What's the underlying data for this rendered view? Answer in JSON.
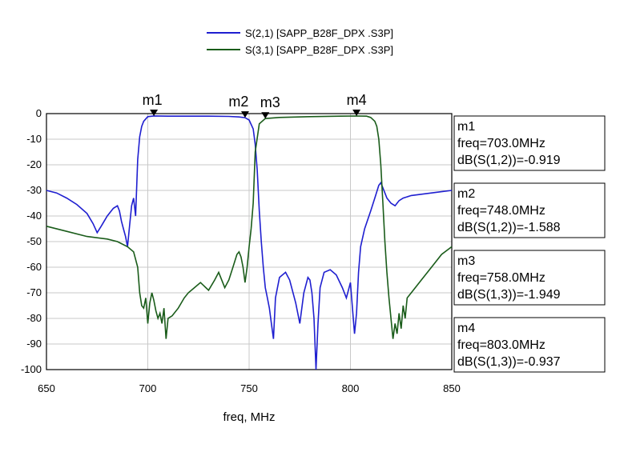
{
  "chart_data": {
    "type": "line",
    "xlabel": "freq, MHz",
    "ylabel": "",
    "xlim": [
      650,
      850
    ],
    "ylim": [
      -100,
      0
    ],
    "x_ticks": [
      "650",
      "700",
      "750",
      "800",
      "850"
    ],
    "y_ticks": [
      "0",
      "-10",
      "-20",
      "-30",
      "-40",
      "-50",
      "-60",
      "-70",
      "-80",
      "-90",
      "-100"
    ],
    "grid": true,
    "legend_position": "top-center",
    "series": [
      {
        "name": "S(2,1) [SAPP_B28F_DPX .S3P]",
        "color": "#1f1fd0",
        "x": [
          650,
          655,
          660,
          665,
          670,
          673,
          675,
          677,
          680,
          683,
          685,
          686,
          687,
          688,
          689,
          690,
          691,
          692,
          693,
          694,
          695,
          696,
          697,
          698,
          700,
          703,
          710,
          720,
          730,
          740,
          745,
          748,
          750,
          752,
          753,
          754,
          755,
          756,
          757,
          758,
          759,
          760,
          761,
          762,
          763,
          765,
          768,
          770,
          773,
          775,
          777,
          779,
          780,
          781,
          782,
          783,
          784,
          785,
          787,
          790,
          793,
          796,
          798,
          800,
          801,
          802,
          803,
          804,
          805,
          807,
          810,
          812,
          814,
          815,
          816,
          818,
          820,
          822,
          824,
          826,
          830,
          835,
          840,
          845,
          850
        ],
        "y": [
          -30,
          -31,
          -33,
          -35.5,
          -39,
          -43,
          -46.5,
          -44,
          -40,
          -37,
          -36,
          -38,
          -42,
          -45,
          -48,
          -52,
          -44,
          -36,
          -33,
          -40,
          -18,
          -9,
          -5,
          -3,
          -1.2,
          -0.919,
          -1.0,
          -1.0,
          -1.0,
          -1.1,
          -1.3,
          -1.588,
          -2.5,
          -6,
          -12,
          -22,
          -38,
          -50,
          -60,
          -68,
          -72,
          -76,
          -82,
          -88,
          -72,
          -64,
          -62,
          -65,
          -74,
          -82,
          -70,
          -64,
          -65,
          -70,
          -80,
          -100,
          -82,
          -68,
          -62,
          -61,
          -63,
          -68,
          -72,
          -66,
          -76,
          -86,
          -78,
          -62,
          -52,
          -45,
          -38,
          -33,
          -28,
          -27,
          -29,
          -33,
          -35,
          -36,
          -34,
          -33,
          -32,
          -31.5,
          -31,
          -30.5,
          -30
        ]
      },
      {
        "name": "S(3,1) [SAPP_B28F_DPX .S3P]",
        "color": "#1a5c1a",
        "x": [
          650,
          660,
          670,
          680,
          685,
          690,
          693,
          695,
          696,
          697,
          698,
          699,
          700,
          701,
          702,
          703,
          704,
          705,
          706,
          707,
          708,
          709,
          710,
          712,
          715,
          718,
          720,
          723,
          726,
          730,
          733,
          735,
          738,
          740,
          742,
          744,
          745,
          746,
          747,
          748,
          749,
          750,
          751,
          752,
          753,
          755,
          758,
          765,
          780,
          795,
          803,
          808,
          810,
          812,
          813,
          814,
          815,
          816,
          817,
          818,
          819,
          820,
          821,
          822,
          823,
          824,
          825,
          826,
          827,
          828,
          830,
          835,
          840,
          845,
          850
        ],
        "y": [
          -44,
          -46,
          -48,
          -49,
          -50,
          -52,
          -54,
          -60,
          -70,
          -75,
          -76,
          -72,
          -82,
          -74,
          -70,
          -73,
          -77,
          -80,
          -78,
          -82,
          -76,
          -88,
          -80,
          -79,
          -76,
          -72,
          -70,
          -68,
          -66,
          -69,
          -65,
          -62,
          -68,
          -65,
          -60,
          -55,
          -54,
          -56,
          -60,
          -66,
          -60,
          -52,
          -45,
          -35,
          -15,
          -4,
          -1.949,
          -1.5,
          -1.2,
          -1.0,
          -0.937,
          -1.0,
          -1.5,
          -3,
          -5,
          -10,
          -20,
          -35,
          -50,
          -62,
          -72,
          -80,
          -88,
          -82,
          -86,
          -78,
          -84,
          -75,
          -80,
          -72,
          -70,
          -65,
          -60,
          -55,
          -52
        ]
      }
    ],
    "markers": [
      {
        "name": "m1",
        "trace": 0,
        "x": 703,
        "y": -0.919,
        "label": "m1",
        "freq": "freq=703.0MHz",
        "value": "dB(S(1,2))=-0.919"
      },
      {
        "name": "m2",
        "trace": 0,
        "x": 748,
        "y": -1.588,
        "label": "m2",
        "freq": "freq=748.0MHz",
        "value": "dB(S(1,2))=-1.588"
      },
      {
        "name": "m3",
        "trace": 1,
        "x": 758,
        "y": -1.949,
        "label": "m3",
        "freq": "freq=758.0MHz",
        "value": "dB(S(1,3))=-1.949"
      },
      {
        "name": "m4",
        "trace": 1,
        "x": 803,
        "y": -0.937,
        "label": "m4",
        "freq": "freq=803.0MHz",
        "value": "dB(S(1,3))=-0.937"
      }
    ]
  }
}
